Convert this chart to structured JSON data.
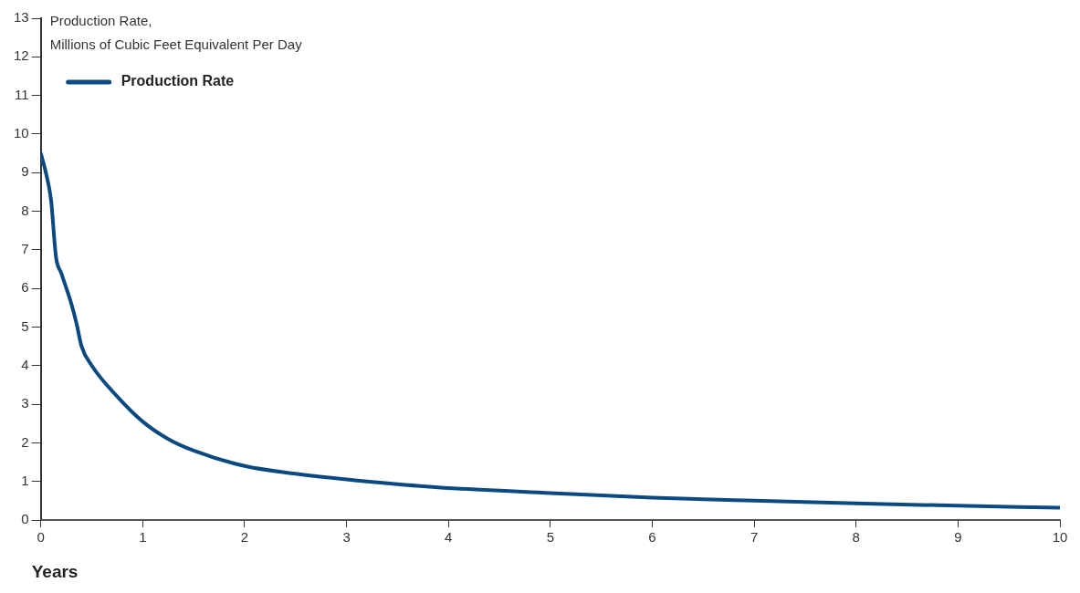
{
  "chart_data": {
    "type": "line",
    "ylabel": "Production Rate,\nMillions of Cubic Feet Equivalent Per Day",
    "xlabel": "Years",
    "x": [
      0,
      0.05,
      0.1,
      0.15,
      0.2,
      0.3,
      0.35,
      0.4,
      0.5,
      0.75,
      1,
      1.25,
      1.5,
      2,
      2.5,
      3,
      3.5,
      4,
      5,
      6,
      7,
      8,
      9,
      10
    ],
    "series": [
      {
        "name": "Production Rate",
        "color": "#0b4a80",
        "values": [
          9.5,
          9.0,
          8.3,
          6.8,
          6.4,
          5.6,
          5.1,
          4.5,
          4.0,
          3.2,
          2.55,
          2.1,
          1.8,
          1.4,
          1.2,
          1.05,
          0.93,
          0.83,
          0.7,
          0.58,
          0.5,
          0.43,
          0.37,
          0.32
        ]
      }
    ],
    "xlim": [
      0,
      10
    ],
    "xticks": [
      0,
      1,
      2,
      3,
      4,
      5,
      6,
      7,
      8,
      9,
      10
    ],
    "ylim": [
      0,
      13
    ],
    "yticks": [
      0,
      1,
      2,
      3,
      4,
      5,
      6,
      7,
      8,
      9,
      10,
      11,
      12,
      13
    ],
    "grid": false,
    "legend": "top left",
    "marker": "none",
    "line_style": "solid"
  }
}
